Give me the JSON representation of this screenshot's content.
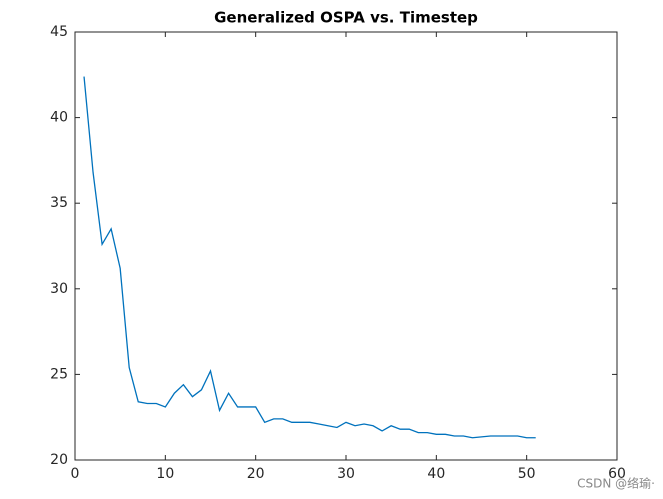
{
  "chart_data": {
    "type": "line",
    "title": "Generalized OSPA vs. Timestep",
    "x": [
      1,
      2,
      3,
      4,
      5,
      6,
      7,
      8,
      9,
      10,
      11,
      12,
      13,
      14,
      15,
      16,
      17,
      18,
      19,
      20,
      21,
      22,
      23,
      24,
      25,
      26,
      27,
      28,
      29,
      30,
      31,
      32,
      33,
      34,
      35,
      36,
      37,
      38,
      39,
      40,
      41,
      42,
      43,
      44,
      45,
      46,
      47,
      48,
      49,
      50,
      51
    ],
    "series": [
      {
        "color": "#0072bd",
        "values": [
          42.4,
          36.8,
          32.6,
          33.5,
          31.2,
          25.4,
          23.4,
          23.3,
          23.3,
          23.1,
          23.9,
          24.4,
          23.7,
          24.1,
          25.2,
          22.9,
          23.9,
          23.1,
          23.1,
          23.1,
          22.2,
          22.4,
          22.4,
          22.2,
          22.2,
          22.2,
          22.1,
          22.0,
          21.9,
          22.2,
          22.0,
          22.1,
          22.0,
          21.7,
          22.0,
          21.8,
          21.8,
          21.6,
          21.6,
          21.5,
          21.5,
          21.4,
          21.4,
          21.3,
          21.35,
          21.4,
          21.4,
          21.4,
          21.4,
          21.3,
          21.3
        ]
      }
    ],
    "xlim": [
      0,
      60
    ],
    "xticks": [
      0,
      10,
      20,
      30,
      40,
      50,
      60
    ],
    "ylim": [
      20,
      45
    ],
    "yticks": [
      20,
      25,
      30,
      35,
      40,
      45
    ],
    "grid": false,
    "watermark": "CSDN @络瑜·"
  }
}
